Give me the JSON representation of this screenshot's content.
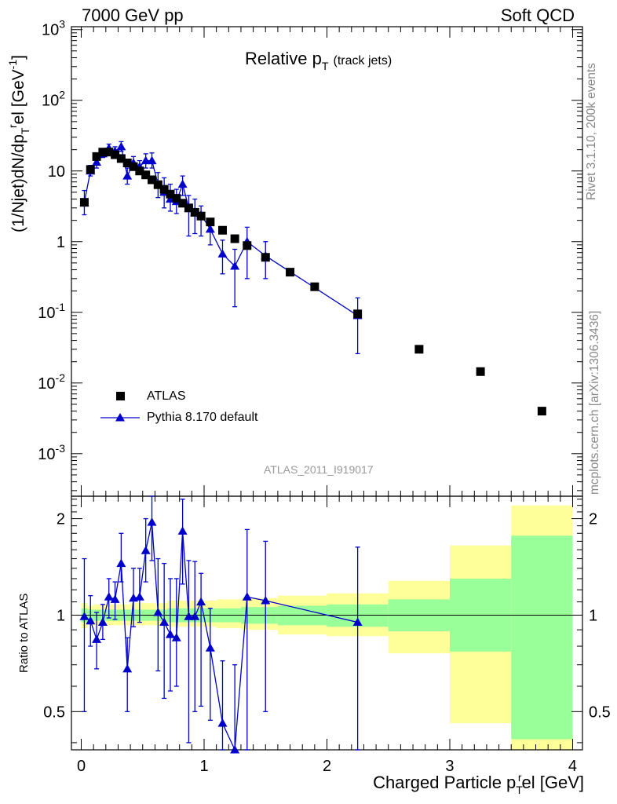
{
  "header": {
    "left": "7000 GeV pp",
    "right": "Soft QCD"
  },
  "plot_title": {
    "main": "Relative p",
    "sub": "T",
    "suffix": "(track jets)"
  },
  "analysis_label": "ATLAS_2011_I919017",
  "side_labels": {
    "rivet": "Rivet 3.1.10,  200k events",
    "mcplots": "mcplots.cern.ch [arXiv:1306.3436]"
  },
  "y_label": {
    "a": "(1/Njet)dN/dp",
    "sup_r": "r",
    "sub_T": "T",
    "b": "el [GeV",
    "sup_m1": "-1",
    "c": "]"
  },
  "x_label": {
    "a": "Charged Particle p",
    "sup_r": "r",
    "sub_T": "T",
    "b": "el [GeV]"
  },
  "ratio_label": "Ratio to ATLAS",
  "legend": {
    "atlas": "ATLAS",
    "pythia": "Pythia 8.170 default"
  },
  "colors": {
    "data": "#000000",
    "mc": "#0000cc",
    "band_inner": "#99ff99",
    "band_outer": "#ffff99"
  },
  "chart_data": [
    {
      "type": "scatter",
      "panel": "main",
      "x_axis": {
        "range": [
          -0.08,
          4.08
        ],
        "ticks": [
          0,
          1,
          2,
          3,
          4
        ]
      },
      "y_axis": {
        "scale": "log",
        "range": [
          0.00025,
          1100
        ],
        "tick_labels": [
          "10^-3",
          "10^-2",
          "10^-1",
          "1",
          "10",
          "10^2",
          "10^3"
        ]
      },
      "legend_placement": "lower-left",
      "series": [
        {
          "name": "ATLAS",
          "marker": "square",
          "points": [
            [
              0.025,
              3.6
            ],
            [
              0.075,
              10.5
            ],
            [
              0.125,
              16.0
            ],
            [
              0.175,
              18.5
            ],
            [
              0.225,
              18.5
            ],
            [
              0.275,
              17.0
            ],
            [
              0.325,
              15.0
            ],
            [
              0.375,
              13.0
            ],
            [
              0.425,
              11.5
            ],
            [
              0.475,
              10.0
            ],
            [
              0.525,
              8.8
            ],
            [
              0.575,
              7.5
            ],
            [
              0.625,
              6.4
            ],
            [
              0.675,
              5.5
            ],
            [
              0.725,
              4.7
            ],
            [
              0.775,
              4.1
            ],
            [
              0.825,
              3.5
            ],
            [
              0.875,
              3.0
            ],
            [
              0.925,
              2.6
            ],
            [
              0.975,
              2.3
            ],
            [
              1.05,
              1.9
            ],
            [
              1.15,
              1.45
            ],
            [
              1.25,
              1.1
            ],
            [
              1.35,
              0.88
            ],
            [
              1.5,
              0.6
            ],
            [
              1.7,
              0.37
            ],
            [
              1.9,
              0.23
            ],
            [
              2.25,
              0.095
            ],
            [
              2.75,
              0.03
            ],
            [
              3.25,
              0.0145
            ],
            [
              3.75,
              0.004
            ]
          ]
        },
        {
          "name": "Pythia 8.170 default",
          "marker": "triangle",
          "points": [
            [
              0.025,
              3.6,
              2.4,
              5.3
            ],
            [
              0.075,
              10.0,
              8.5,
              12.0
            ],
            [
              0.125,
              13.3,
              11.0,
              16.0
            ],
            [
              0.175,
              17.5,
              15.5,
              20.0
            ],
            [
              0.225,
              21.0,
              18.0,
              24.0
            ],
            [
              0.275,
              19.0,
              16.5,
              22.0
            ],
            [
              0.325,
              22.0,
              19.0,
              26.0
            ],
            [
              0.375,
              8.5,
              6.5,
              11.0
            ],
            [
              0.425,
              13.0,
              10.5,
              16.0
            ],
            [
              0.475,
              11.5,
              9.5,
              14.0
            ],
            [
              0.525,
              14.0,
              11.0,
              17.5
            ],
            [
              0.575,
              14.0,
              11.0,
              18.0
            ],
            [
              0.625,
              6.5,
              4.2,
              9.5
            ],
            [
              0.675,
              5.0,
              3.0,
              8.0
            ],
            [
              0.725,
              4.0,
              2.7,
              6.5
            ],
            [
              0.775,
              3.7,
              2.5,
              5.5
            ],
            [
              0.825,
              6.5,
              4.5,
              8.5
            ],
            [
              0.875,
              3.0,
              1.2,
              4.5
            ],
            [
              0.925,
              2.6,
              1.3,
              4.0
            ],
            [
              0.975,
              2.4,
              1.2,
              3.2
            ],
            [
              1.05,
              1.5,
              0.9,
              2.0
            ],
            [
              1.15,
              0.67,
              0.35,
              1.05
            ],
            [
              1.25,
              0.45,
              0.12,
              0.78
            ],
            [
              1.35,
              1.0,
              0.3,
              1.6
            ],
            [
              1.5,
              0.63,
              0.3,
              1.0
            ],
            [
              2.25,
              0.09,
              0.026,
              0.16
            ]
          ]
        }
      ]
    },
    {
      "type": "scatter",
      "panel": "ratio",
      "x_axis": {
        "range": [
          -0.08,
          4.08
        ],
        "ticks": [
          0,
          1,
          2,
          3,
          4
        ]
      },
      "y_axis": {
        "scale": "log",
        "range": [
          0.38,
          2.35
        ],
        "tick_labels": [
          "0.5",
          "1",
          "2"
        ]
      },
      "reference_line": 1,
      "bands": [
        {
          "x": [
            0.0,
            0.05
          ],
          "inner": [
            0.95,
            1.05
          ],
          "outer": [
            0.91,
            1.09
          ]
        },
        {
          "x": [
            0.05,
            0.1
          ],
          "inner": [
            0.96,
            1.04
          ],
          "outer": [
            0.93,
            1.07
          ]
        },
        {
          "x": [
            0.1,
            0.4
          ],
          "inner": [
            0.96,
            1.04
          ],
          "outer": [
            0.93,
            1.08
          ]
        },
        {
          "x": [
            0.4,
            0.7
          ],
          "inner": [
            0.96,
            1.04
          ],
          "outer": [
            0.93,
            1.09
          ]
        },
        {
          "x": [
            0.7,
            1.1
          ],
          "inner": [
            0.95,
            1.05
          ],
          "outer": [
            0.92,
            1.11
          ]
        },
        {
          "x": [
            1.1,
            1.3
          ],
          "inner": [
            0.95,
            1.05
          ],
          "outer": [
            0.91,
            1.12
          ]
        },
        {
          "x": [
            1.3,
            1.6
          ],
          "inner": [
            0.94,
            1.06
          ],
          "outer": [
            0.9,
            1.13
          ]
        },
        {
          "x": [
            1.6,
            2.0
          ],
          "inner": [
            0.93,
            1.07
          ],
          "outer": [
            0.87,
            1.15
          ]
        },
        {
          "x": [
            2.0,
            2.5
          ],
          "inner": [
            0.92,
            1.08
          ],
          "outer": [
            0.86,
            1.17
          ]
        },
        {
          "x": [
            2.5,
            3.0
          ],
          "inner": [
            0.89,
            1.12
          ],
          "outer": [
            0.76,
            1.28
          ]
        },
        {
          "x": [
            3.0,
            3.5
          ],
          "inner": [
            0.77,
            1.3
          ],
          "outer": [
            0.46,
            1.65
          ]
        },
        {
          "x": [
            3.5,
            4.0
          ],
          "inner": [
            0.41,
            1.77
          ],
          "outer": [
            0.36,
            2.2
          ]
        }
      ],
      "series": [
        {
          "name": "Pythia 8.170 default",
          "points": [
            [
              0.025,
              0.99,
              0.5,
              1.5
            ],
            [
              0.075,
              0.96,
              0.8,
              1.15
            ],
            [
              0.125,
              0.84,
              0.68,
              1.02
            ],
            [
              0.175,
              0.95,
              0.84,
              1.08
            ],
            [
              0.225,
              1.14,
              0.98,
              1.3
            ],
            [
              0.275,
              1.12,
              0.97,
              1.27
            ],
            [
              0.325,
              1.45,
              1.27,
              1.8
            ],
            [
              0.375,
              0.68,
              0.5,
              0.85
            ],
            [
              0.425,
              1.13,
              0.92,
              1.4
            ],
            [
              0.475,
              1.14,
              0.95,
              1.4
            ],
            [
              0.525,
              1.59,
              1.27,
              2.0
            ],
            [
              0.575,
              1.95,
              1.48,
              2.35
            ],
            [
              0.625,
              1.02,
              0.67,
              1.5
            ],
            [
              0.675,
              0.95,
              0.55,
              1.45
            ],
            [
              0.725,
              0.87,
              0.58,
              1.3
            ],
            [
              0.775,
              0.85,
              0.6,
              1.3
            ],
            [
              0.825,
              1.83,
              1.25,
              2.3
            ],
            [
              0.875,
              0.99,
              0.4,
              1.48
            ],
            [
              0.925,
              0.99,
              0.5,
              1.47
            ],
            [
              0.975,
              1.1,
              0.52,
              1.35
            ],
            [
              1.05,
              0.79,
              0.47,
              1.05
            ],
            [
              1.15,
              0.46,
              0.24,
              0.72
            ],
            [
              1.25,
              0.37,
              0.1,
              0.7
            ],
            [
              1.35,
              1.14,
              0.35,
              1.85
            ],
            [
              1.5,
              1.11,
              0.5,
              1.7
            ],
            [
              2.25,
              0.95,
              0.28,
              1.63
            ]
          ]
        }
      ]
    }
  ]
}
